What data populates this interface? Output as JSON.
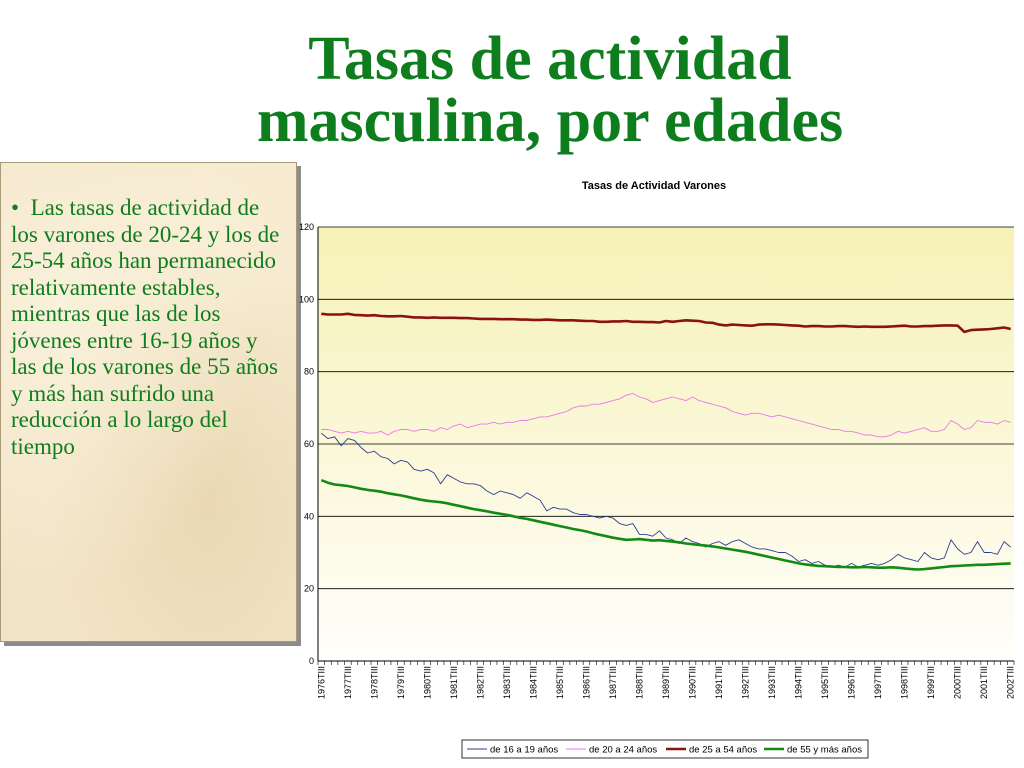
{
  "slide": {
    "title_line1": "Tasas de actividad",
    "title_line2": "masculina, por edades",
    "bullet_marker": "•",
    "bullet_text": "Las tasas de actividad de los varones de 20-24 y los de 25-54 años han permanecido relativamente estables, mientras que las de los jóvenes entre 16-19 años y las de los varones de 55 años y más han sufrido una reducción a lo largo del tiempo"
  },
  "colors": {
    "title": "#0e7d1d",
    "text_box_bg": "#f2e4c6",
    "plot_bg_top": "#f7f1b6",
    "plot_bg_bottom": "#fffefa"
  },
  "chart_data": {
    "type": "line",
    "title": "Tasas de Actividad Varones",
    "xlabel": "",
    "ylabel": "",
    "ylim": [
      0,
      120
    ],
    "yticks": [
      0,
      20,
      40,
      60,
      80,
      100,
      120
    ],
    "grid": true,
    "legend_position": "bottom",
    "x_labels": [
      "1976TIII",
      "1977TIII",
      "1978TIII",
      "1979TIII",
      "1980TIII",
      "1981TIII",
      "1982TIII",
      "1983TIII",
      "1984TIII",
      "1985TIII",
      "1986TIII",
      "1987TIII",
      "1988TIII",
      "1989TIII",
      "1990TIII",
      "1991TIII",
      "1992TIII",
      "1993TIII",
      "1994TIII",
      "1995TIII",
      "1996TIII",
      "1997TIII",
      "1998TIII",
      "1999TIII",
      "2000TIII",
      "2001TIII",
      "2002TIII"
    ],
    "series": [
      {
        "name": "de 16 a 19 años",
        "color": "#2b3f8f",
        "values": [
          63.0,
          61.5,
          62.0,
          59.5,
          61.5,
          61.0,
          59.0,
          57.5,
          58.0,
          56.5,
          56.0,
          54.5,
          55.5,
          55.0,
          53.0,
          52.5,
          53.0,
          52.0,
          49.0,
          51.5,
          50.5,
          49.5,
          49.0,
          49.0,
          48.5,
          47.0,
          46.0,
          47.0,
          46.5,
          46.0,
          45.0,
          46.5,
          45.5,
          44.5,
          41.5,
          42.5,
          42.0,
          42.0,
          41.0,
          40.5,
          40.5,
          40.0,
          39.5,
          40.0,
          39.5,
          38.0,
          37.5,
          38.0,
          35.0,
          35.0,
          34.5,
          36.0,
          34.0,
          33.5,
          32.5,
          34.0,
          33.0,
          32.5,
          31.5,
          32.5,
          33.0,
          32.0,
          33.0,
          33.5,
          32.5,
          31.5,
          31.0,
          31.0,
          30.5,
          30.0,
          30.0,
          29.0,
          27.5,
          28.0,
          27.0,
          27.5,
          26.5,
          26.0,
          26.5,
          26.0,
          27.0,
          26.0,
          26.5,
          27.0,
          26.5,
          27.0,
          28.0,
          29.5,
          28.5,
          28.0,
          27.5,
          30.0,
          28.5,
          28.0,
          28.5,
          33.5,
          31.0,
          29.5,
          30.0,
          33.0,
          30.0,
          30.0,
          29.5,
          33.0,
          31.5
        ]
      },
      {
        "name": "de 20 a 24 años",
        "color": "#e67be6",
        "values": [
          64.0,
          64.0,
          63.5,
          63.0,
          63.5,
          63.0,
          63.5,
          63.0,
          63.0,
          63.5,
          62.5,
          63.5,
          64.0,
          64.0,
          63.5,
          64.0,
          64.0,
          63.5,
          64.5,
          64.0,
          65.0,
          65.5,
          64.5,
          65.0,
          65.5,
          65.5,
          66.0,
          65.5,
          66.0,
          66.0,
          66.5,
          66.5,
          67.0,
          67.5,
          67.5,
          68.0,
          68.5,
          69.0,
          70.0,
          70.5,
          70.5,
          71.0,
          71.0,
          71.5,
          72.0,
          72.5,
          73.5,
          74.0,
          73.0,
          72.5,
          71.5,
          72.0,
          72.5,
          73.0,
          72.5,
          72.0,
          73.0,
          72.0,
          71.5,
          71.0,
          70.5,
          70.0,
          69.0,
          68.5,
          68.0,
          68.5,
          68.5,
          68.0,
          67.5,
          68.0,
          67.5,
          67.0,
          66.5,
          66.0,
          65.5,
          65.0,
          64.5,
          64.0,
          64.0,
          63.5,
          63.5,
          63.0,
          62.5,
          62.5,
          62.0,
          62.0,
          62.5,
          63.5,
          63.0,
          63.5,
          64.0,
          64.5,
          63.5,
          63.5,
          64.0,
          66.5,
          65.5,
          64.0,
          64.5,
          66.5,
          66.0,
          66.0,
          65.5,
          66.5,
          66.0
        ]
      },
      {
        "name": "de 25 a 54 años",
        "color": "#8b1212",
        "values": [
          96.0,
          95.8,
          95.8,
          95.8,
          96.0,
          95.7,
          95.6,
          95.5,
          95.6,
          95.4,
          95.3,
          95.3,
          95.4,
          95.2,
          95.0,
          95.0,
          94.9,
          95.0,
          94.9,
          94.9,
          94.9,
          94.8,
          94.8,
          94.7,
          94.6,
          94.6,
          94.6,
          94.5,
          94.5,
          94.5,
          94.4,
          94.4,
          94.3,
          94.3,
          94.4,
          94.3,
          94.2,
          94.2,
          94.2,
          94.1,
          94.0,
          94.0,
          93.8,
          93.8,
          93.9,
          93.9,
          94.0,
          93.8,
          93.8,
          93.7,
          93.7,
          93.6,
          94.0,
          93.8,
          94.0,
          94.2,
          94.1,
          94.0,
          93.6,
          93.5,
          93.0,
          92.8,
          93.0,
          92.9,
          92.8,
          92.7,
          93.0,
          93.1,
          93.1,
          93.0,
          92.9,
          92.8,
          92.7,
          92.5,
          92.6,
          92.6,
          92.5,
          92.5,
          92.6,
          92.6,
          92.5,
          92.4,
          92.5,
          92.4,
          92.4,
          92.4,
          92.5,
          92.6,
          92.7,
          92.5,
          92.5,
          92.6,
          92.6,
          92.7,
          92.8,
          92.8,
          92.7,
          91.0,
          91.5,
          91.6,
          91.7,
          91.8,
          92.0,
          92.2,
          91.8
        ]
      },
      {
        "name": "de 55 y más años",
        "color": "#138a13",
        "values": [
          50.0,
          49.3,
          48.8,
          48.6,
          48.4,
          48.0,
          47.6,
          47.3,
          47.1,
          46.8,
          46.4,
          46.1,
          45.8,
          45.4,
          45.0,
          44.6,
          44.3,
          44.1,
          43.9,
          43.6,
          43.2,
          42.8,
          42.4,
          42.0,
          41.7,
          41.4,
          41.0,
          40.7,
          40.4,
          40.0,
          39.6,
          39.3,
          38.9,
          38.5,
          38.1,
          37.7,
          37.3,
          36.9,
          36.5,
          36.2,
          35.8,
          35.3,
          34.9,
          34.5,
          34.1,
          33.8,
          33.5,
          33.6,
          33.7,
          33.5,
          33.3,
          33.4,
          33.2,
          33.0,
          32.8,
          32.5,
          32.3,
          32.1,
          31.9,
          31.7,
          31.4,
          31.1,
          30.8,
          30.5,
          30.2,
          29.8,
          29.4,
          29.0,
          28.6,
          28.2,
          27.8,
          27.4,
          27.0,
          26.7,
          26.5,
          26.3,
          26.2,
          26.1,
          26.0,
          26.0,
          25.9,
          25.9,
          26.0,
          25.9,
          25.8,
          25.8,
          25.9,
          25.8,
          25.6,
          25.4,
          25.3,
          25.4,
          25.6,
          25.8,
          26.0,
          26.2,
          26.3,
          26.4,
          26.5,
          26.6,
          26.6,
          26.7,
          26.8,
          26.9,
          27.0
        ]
      }
    ]
  }
}
